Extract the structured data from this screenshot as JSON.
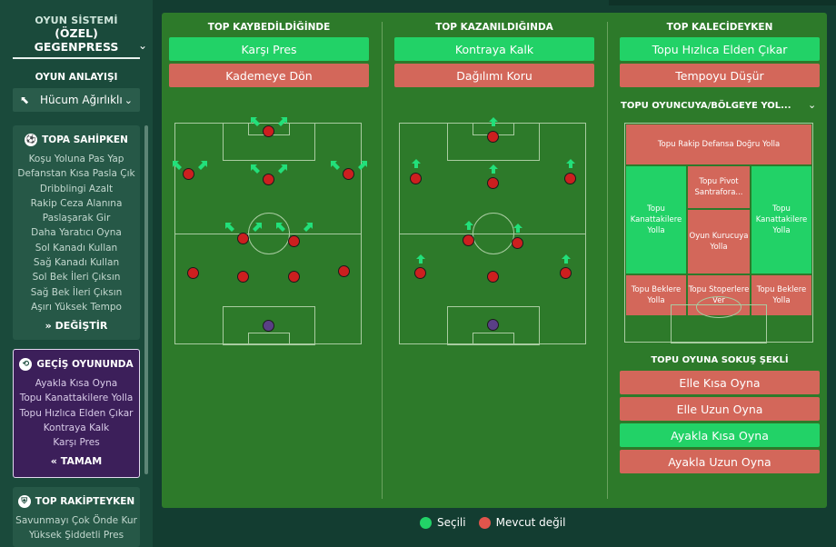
{
  "sidebar": {
    "system_label": "OYUN SİSTEMİ",
    "system_line1": "(ÖZEL)",
    "system_line2": "GEGENPRESS",
    "mentality_label": "OYUN ANLAYIŞI",
    "mentality_value": "Hücum Ağırlıklı",
    "in_possession": {
      "title": "TOPA SAHİPKEN",
      "items": [
        "Koşu Yoluna Pas Yap",
        "Defanstan Kısa Pasla Çık",
        "Dribblingi Azalt",
        "Rakip Ceza Alanına",
        "Paslaşarak Gir",
        "Daha Yaratıcı Oyna",
        "Sol Kanadı Kullan",
        "Sağ Kanadı Kullan",
        "Sol Bek İleri Çıksın",
        "Sağ Bek İleri Çıksın",
        "Aşırı Yüksek Tempo"
      ],
      "button": "DEĞİŞTİR"
    },
    "in_transition": {
      "title": "GEÇİŞ OYUNUNDA",
      "items": [
        "Ayakla Kısa Oyna",
        "Topu Kanattakilere Yolla",
        "Topu Hızlıca Elden Çıkar",
        "Kontraya Kalk",
        "Karşı Pres"
      ],
      "button": "TAMAM"
    },
    "out_of_possession": {
      "title": "TOP RAKİPTEYKEN",
      "items": [
        "Savunmayı Çok Önde Kur",
        "Yüksek Şiddetli Pres"
      ]
    }
  },
  "columns": {
    "lost": {
      "title": "TOP KAYBEDİLDİĞİNDE",
      "options": [
        {
          "label": "Karşı Pres",
          "state": "selected"
        },
        {
          "label": "Kademeye Dön",
          "state": "unavailable"
        }
      ]
    },
    "won": {
      "title": "TOP KAZANILDIĞINDA",
      "options": [
        {
          "label": "Kontraya Kalk",
          "state": "selected"
        },
        {
          "label": "Dağılımı Koru",
          "state": "unavailable"
        }
      ]
    },
    "gk": {
      "title": "TOP KALECİDEYKEN",
      "options": [
        {
          "label": "Topu Hızlıca Elden Çıkar",
          "state": "selected"
        },
        {
          "label": "Tempoyu Düşür",
          "state": "unavailable"
        }
      ],
      "area_title": "TOPU OYUNCUYA/BÖLGEYE YOL...",
      "zones": {
        "z1": "Topu Rakip Defansa Doğru Yolla",
        "z2": "Topu Pivot Santrafora...",
        "z3": "Topu Kanattakilere Yolla",
        "z4": "Oyun Kurucuya Yolla",
        "z5": "Topu Kanattakilere Yolla",
        "z6": "Topu Beklere Yolla",
        "z7": "Topu Stoperlere Ver",
        "z8": "Topu Beklere Yolla"
      },
      "distribution_title": "TOPU OYUNA SOKUŞ ŞEKLİ",
      "distribution": [
        {
          "label": "Elle Kısa Oyna",
          "state": "unavailable"
        },
        {
          "label": "Elle Uzun Oyna",
          "state": "unavailable"
        },
        {
          "label": "Ayakla Kısa Oyna",
          "state": "selected"
        },
        {
          "label": "Ayakla Uzun Oyna",
          "state": "unavailable"
        }
      ]
    }
  },
  "legend": {
    "selected": "Seçili",
    "unavailable": "Mevcut değil"
  },
  "colors": {
    "selected": "#22d267",
    "unavailable": "#d3675a",
    "pitch": "#2d7a2a",
    "transition_panel": "#3c1f5a"
  },
  "icons": {
    "mentality": "attack-arrow-icon",
    "possession": "ball-icon",
    "transition": "transition-icon",
    "defense": "shield-icon"
  }
}
